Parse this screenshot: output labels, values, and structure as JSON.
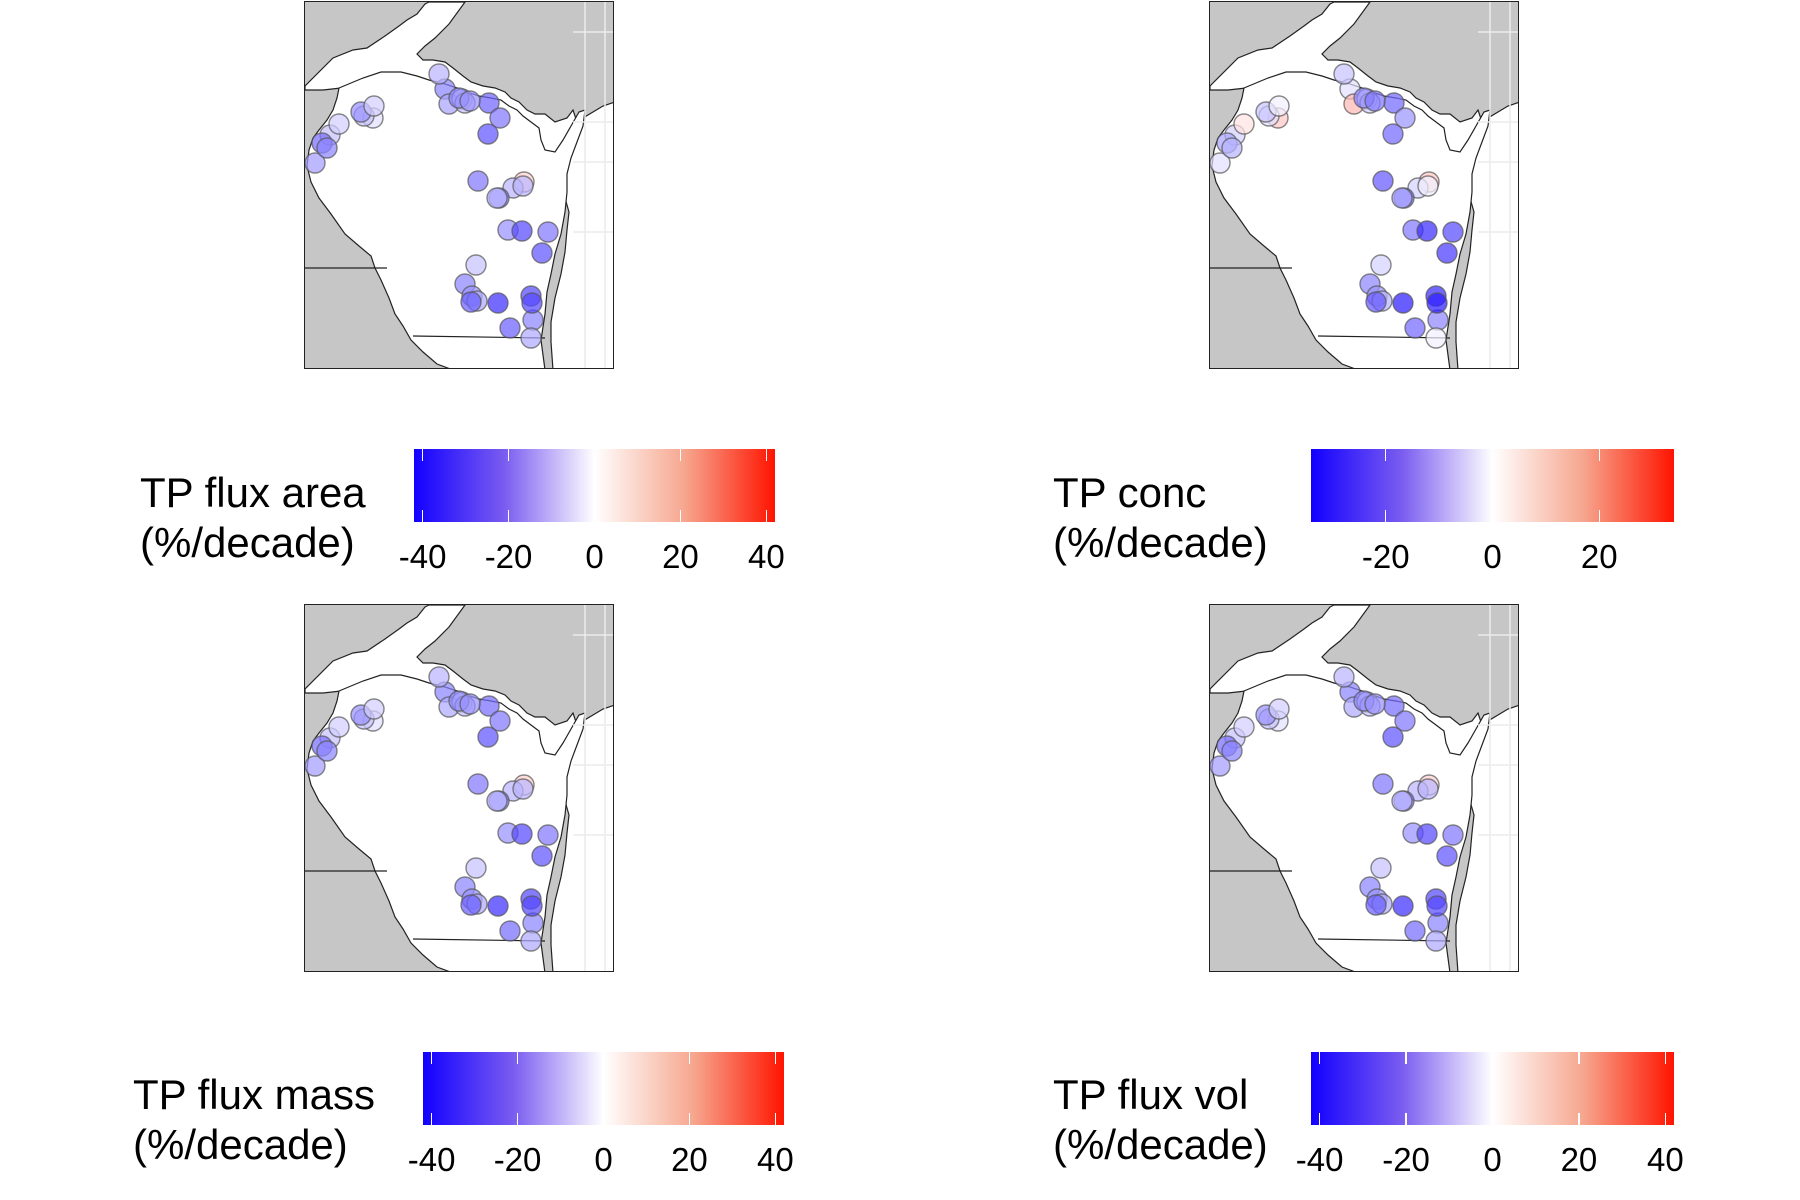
{
  "colors": {
    "land": "#ffffff",
    "water_and_outside": "#c6c6c6",
    "grid": "#ececec",
    "border": "#222222",
    "scale_low": "#1200ff",
    "scale_mid": "#ffffff",
    "scale_high": "#ff1400"
  },
  "chart_data": [
    {
      "type": "map-scatter",
      "panel": "top-left",
      "legend": {
        "title_line1": "TP flux area",
        "title_line2": "(%/decade)"
      },
      "color_scale": {
        "min": -42,
        "max": 42,
        "ticks": [
          -40,
          -20,
          0,
          20,
          40
        ],
        "tick_labels": [
          "-40",
          "-20",
          "0",
          "20",
          "40"
        ]
      },
      "values": [
        -20,
        -15,
        -5,
        -25,
        -10,
        -12,
        -20,
        -18,
        -22,
        -28,
        -10,
        -8,
        -24,
        -16,
        -20,
        -5,
        -10,
        -18,
        -8,
        8,
        -22,
        -12,
        -22,
        -12,
        -12,
        -18,
        -30,
        -10,
        -22,
        -28,
        -20,
        -18,
        -14,
        -26,
        -34,
        -30,
        -20,
        -14,
        -26,
        -30
      ]
    },
    {
      "type": "map-scatter",
      "panel": "top-right",
      "legend": {
        "title_line1": "TP conc",
        "title_line2": "(%/decade)"
      },
      "color_scale": {
        "min": -34,
        "max": 34,
        "ticks": [
          -20,
          0,
          20
        ],
        "tick_labels": [
          "-20",
          "0",
          "20"
        ]
      },
      "values": [
        -4,
        10,
        -2,
        -20,
        -6,
        -8,
        -16,
        -18,
        -14,
        -20,
        -6,
        4,
        -12,
        -4,
        -10,
        8,
        -4,
        -8,
        -2,
        8,
        -22,
        -6,
        -20,
        -2,
        -12,
        -18,
        -28,
        -6,
        -24,
        -26,
        -16,
        -14,
        -10,
        -22,
        -30,
        -28,
        -16,
        -2,
        -20,
        -30
      ]
    },
    {
      "type": "map-scatter",
      "panel": "bottom-left",
      "legend": {
        "title_line1": "TP flux mass",
        "title_line2": "(%/decade)"
      },
      "color_scale": {
        "min": -42,
        "max": 42,
        "ticks": [
          -40,
          -20,
          0,
          20,
          40
        ],
        "tick_labels": [
          "-40",
          "-20",
          "0",
          "20",
          "40"
        ]
      },
      "values": [
        -20,
        -14,
        -5,
        -24,
        -10,
        -12,
        -20,
        -18,
        -22,
        -28,
        -10,
        -8,
        -24,
        -16,
        -20,
        -5,
        -10,
        -18,
        -8,
        8,
        -22,
        -12,
        -22,
        -12,
        -12,
        -18,
        -30,
        -10,
        -22,
        -28,
        -20,
        -18,
        -14,
        -26,
        -34,
        -30,
        -20,
        -14,
        -24,
        -30
      ]
    },
    {
      "type": "map-scatter",
      "panel": "bottom-right",
      "legend": {
        "title_line1": "TP flux vol",
        "title_line2": "(%/decade)"
      },
      "color_scale": {
        "min": -42,
        "max": 42,
        "ticks": [
          -40,
          -20,
          0,
          20,
          40
        ],
        "tick_labels": [
          "-40",
          "-20",
          "0",
          "20",
          "40"
        ]
      },
      "values": [
        -20,
        -14,
        -5,
        -24,
        -10,
        -12,
        -20,
        -18,
        -22,
        -28,
        -10,
        -8,
        -24,
        -16,
        -20,
        -5,
        -10,
        -18,
        -8,
        8,
        -22,
        -12,
        -22,
        -12,
        -12,
        -18,
        -30,
        -10,
        -22,
        -28,
        -20,
        -18,
        -14,
        -26,
        -34,
        -30,
        -20,
        -14,
        -24,
        -30
      ]
    }
  ]
}
